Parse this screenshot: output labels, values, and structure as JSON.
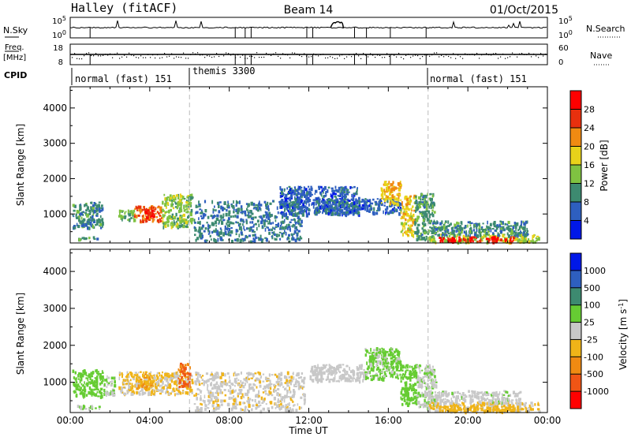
{
  "header": {
    "station": "Halley (fitACF)",
    "beam": "Beam 14",
    "date": "01/Oct/2015"
  },
  "noise_panel": {
    "left_label": "N.Sky",
    "left_ticks": [
      "10^5",
      "10^0"
    ],
    "right_ticks": [
      "10^5",
      "10^0"
    ],
    "right_label": "N.Search"
  },
  "freq_panel": {
    "left_label_line1": "Freq.",
    "left_label_line2": "[MHz]",
    "left_ticks": [
      "18",
      "8"
    ],
    "right_ticks": [
      "60",
      "0"
    ],
    "right_label": "Nave"
  },
  "cpid": {
    "label": "CPID",
    "segments": [
      {
        "text": "normal (fast) 151",
        "start_h": 0
      },
      {
        "text": "themis 3300",
        "start_h": 6
      },
      {
        "text": "normal (fast) 151",
        "start_h": 18
      }
    ]
  },
  "x_axis": {
    "label": "Time UT",
    "ticks": [
      "00:00",
      "04:00",
      "08:00",
      "12:00",
      "16:00",
      "20:00",
      "00:00"
    ],
    "range_hours": [
      0,
      24
    ],
    "dashed_marks_hours": [
      6,
      18
    ]
  },
  "chart_data": [
    {
      "type": "heatmap",
      "name": "power",
      "xlabel": "Time UT",
      "ylabel": "Slant Range [km]",
      "xlim_hours": [
        0,
        24
      ],
      "ylim_km": [
        180,
        4600
      ],
      "yticks": [
        "1000",
        "2000",
        "3000",
        "4000"
      ],
      "colorbar": {
        "label": "Power [dB]",
        "ticks": [
          "4",
          "8",
          "12",
          "16",
          "20",
          "24",
          "28"
        ],
        "range": [
          0,
          30
        ],
        "colors": [
          "#0018e8",
          "#2e5fbf",
          "#3d8a70",
          "#7fc241",
          "#e8d21a",
          "#f08a12",
          "#e8300e",
          "#ff0000"
        ]
      },
      "regions": [
        {
          "t": [
            0.1,
            1.6
          ],
          "r": [
            620,
            1360
          ],
          "v": 9
        },
        {
          "t": [
            2.4,
            3.2
          ],
          "r": [
            850,
            1150
          ],
          "v": 12
        },
        {
          "t": [
            3.2,
            4.6
          ],
          "r": [
            800,
            1250
          ],
          "v": 22
        },
        {
          "t": [
            3.6,
            4.2
          ],
          "r": [
            900,
            1150
          ],
          "v": 27
        },
        {
          "t": [
            4.6,
            6.1
          ],
          "r": [
            650,
            1580
          ],
          "v": 13
        },
        {
          "t": [
            0.3,
            1.4
          ],
          "r": [
            300,
            380
          ],
          "v": 10
        },
        {
          "t": [
            6.2,
            11.6
          ],
          "r": [
            250,
            1400
          ],
          "v": 8
        },
        {
          "t": [
            10.5,
            14.5
          ],
          "r": [
            1000,
            1800
          ],
          "v": 6
        },
        {
          "t": [
            12.2,
            16.6
          ],
          "r": [
            1050,
            1450
          ],
          "v": 6
        },
        {
          "t": [
            15.6,
            16.6
          ],
          "r": [
            1300,
            1950
          ],
          "v": 18
        },
        {
          "t": [
            16.6,
            17.3
          ],
          "r": [
            400,
            1550
          ],
          "v": 17
        },
        {
          "t": [
            17.3,
            18.3
          ],
          "r": [
            300,
            1600
          ],
          "v": 10
        },
        {
          "t": [
            18.0,
            23.6
          ],
          "r": [
            230,
            450
          ],
          "v": 15
        },
        {
          "t": [
            18.5,
            22.5
          ],
          "r": [
            240,
            380
          ],
          "v": 27
        },
        {
          "t": [
            18.2,
            23.0
          ],
          "r": [
            420,
            820
          ],
          "v": 9
        }
      ]
    },
    {
      "type": "heatmap",
      "name": "velocity",
      "xlabel": "Time UT",
      "ylabel": "Slant Range [km]",
      "xlim_hours": [
        0,
        24
      ],
      "ylim_km": [
        180,
        4600
      ],
      "yticks": [
        "1000",
        "2000",
        "3000",
        "4000"
      ],
      "colorbar": {
        "label": "Velocity [m s^-1]",
        "ticks": [
          "-1000",
          "-500",
          "-100",
          "-25",
          "25",
          "100",
          "500",
          "1000"
        ],
        "range": [
          -1250,
          1250
        ],
        "colors": [
          "#ff0000",
          "#f05515",
          "#f08a12",
          "#f0b418",
          "#c8c8c8",
          "#66cc33",
          "#3d8a70",
          "#2e5fbf",
          "#0018e8"
        ]
      },
      "regions": [
        {
          "t": [
            0.1,
            1.6
          ],
          "r": [
            620,
            1360
          ],
          "v": 300
        },
        {
          "t": [
            1.6,
            2.2
          ],
          "r": [
            700,
            1200
          ],
          "v": 150
        },
        {
          "t": [
            2.4,
            6.1
          ],
          "r": [
            700,
            1300
          ],
          "v": -150
        },
        {
          "t": [
            3.3,
            4.2
          ],
          "r": [
            850,
            1250
          ],
          "v": -400
        },
        {
          "t": [
            5.4,
            6.0
          ],
          "r": [
            900,
            1550
          ],
          "v": -700
        },
        {
          "t": [
            0.3,
            1.5
          ],
          "r": [
            300,
            400
          ],
          "v": 150
        },
        {
          "t": [
            6.2,
            11.8
          ],
          "r": [
            250,
            1300
          ],
          "v": -80
        },
        {
          "t": [
            12.0,
            14.8
          ],
          "r": [
            1050,
            1500
          ],
          "v": 10
        },
        {
          "t": [
            14.8,
            16.6
          ],
          "r": [
            1100,
            1950
          ],
          "v": 200
        },
        {
          "t": [
            16.6,
            17.4
          ],
          "r": [
            400,
            1500
          ],
          "v": 300
        },
        {
          "t": [
            17.4,
            18.4
          ],
          "r": [
            300,
            1500
          ],
          "v": 100
        },
        {
          "t": [
            18.0,
            23.6
          ],
          "r": [
            230,
            480
          ],
          "v": -150
        },
        {
          "t": [
            18.5,
            22.5
          ],
          "r": [
            240,
            400
          ],
          "v": -250
        },
        {
          "t": [
            18.3,
            22.6
          ],
          "r": [
            460,
            800
          ],
          "v": 50
        }
      ]
    }
  ]
}
